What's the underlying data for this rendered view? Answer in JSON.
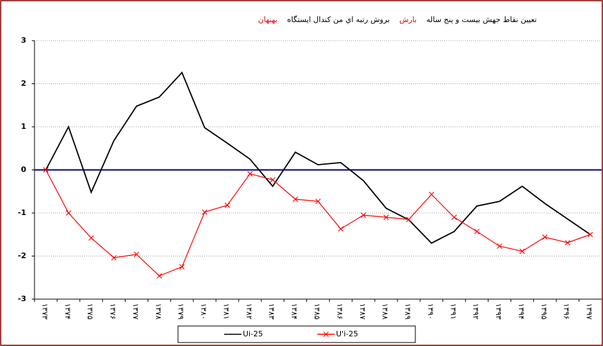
{
  "chart_data": {
    "type": "line",
    "title_parts": [
      "تعیین نقاط جهش بیست و پنج ساله",
      "بارش",
      "بروش رتبه اي من كندال ايستگاه",
      "بهبهان"
    ],
    "categories": [
      "۱۳۷۳",
      "۱۳۷۴",
      "۱۳۷۵",
      "۱۳۷۶",
      "۱۳۷۷",
      "۱۳۷۸",
      "۱۳۷۹",
      "۱۳۸۰",
      "۱۳۸۱",
      "۱۳۸۲",
      "۱۳۸۳",
      "۱۳۸۴",
      "۱۳۸۵",
      "۱۳۸۶",
      "۱۳۸۷",
      "۱۳۸۸",
      "۱۳۸۹",
      "۱۳۹۰",
      "۱۳۹۱",
      "۱۳۹۲",
      "۱۳۹۳",
      "۱۳۹۴",
      "۱۳۹۵",
      "۱۳۹۶",
      "۱۳۹۷"
    ],
    "series": [
      {
        "name": "Ui-25",
        "color": "#000000",
        "marker": "none",
        "values": [
          0,
          1.0,
          -0.52,
          0.68,
          1.48,
          1.69,
          2.26,
          0.98,
          0.62,
          0.25,
          -0.38,
          0.41,
          0.12,
          0.17,
          -0.25,
          -0.89,
          -1.16,
          -1.7,
          -1.43,
          -0.84,
          -0.73,
          -0.38,
          -0.78,
          -1.14,
          -1.5
        ]
      },
      {
        "name": "U'i-25",
        "color": "#ff0000",
        "marker": "x",
        "values": [
          0,
          -1.0,
          -1.58,
          -2.04,
          -1.96,
          -2.46,
          -2.25,
          -0.98,
          -0.82,
          -0.09,
          -0.23,
          -0.68,
          -0.73,
          -1.37,
          -1.05,
          -1.1,
          -1.15,
          -0.57,
          -1.1,
          -1.43,
          -1.77,
          -1.89,
          -1.56,
          -1.69,
          -1.5
        ]
      }
    ],
    "ylim": [
      -3,
      3
    ],
    "yticks": [
      3,
      2,
      1,
      0,
      -1,
      -2,
      -3
    ],
    "grid": true,
    "zero_line_color": "#000080"
  }
}
